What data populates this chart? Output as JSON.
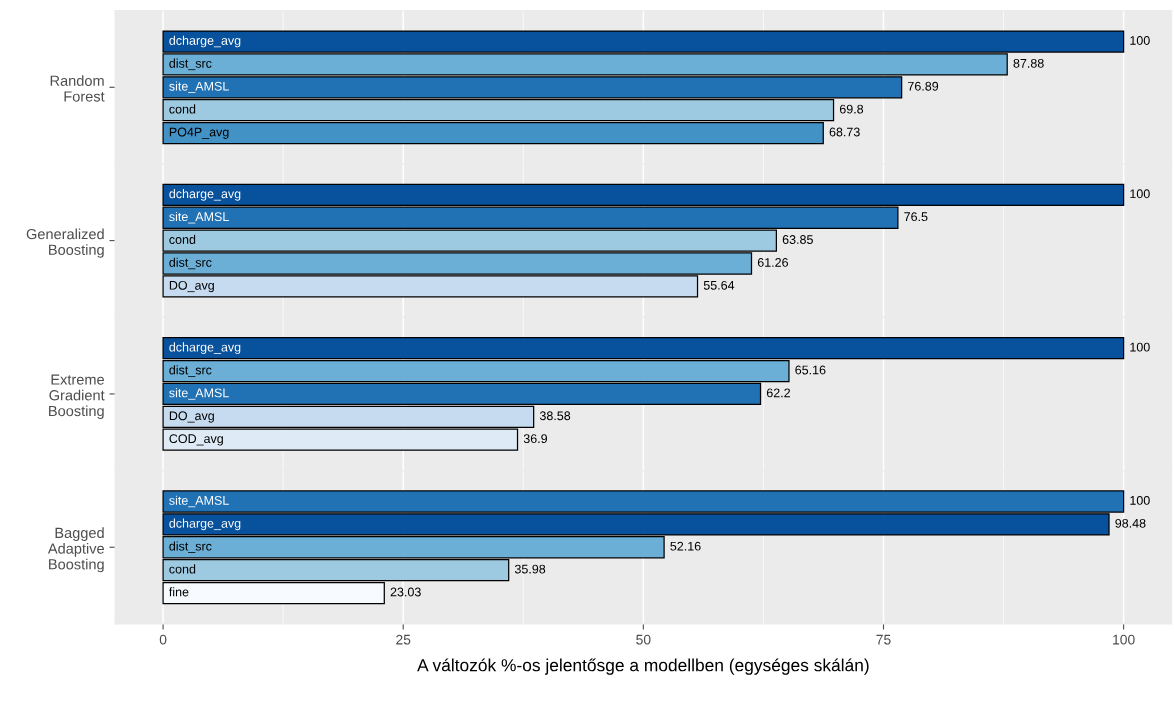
{
  "chart_data": [
    {
      "type": "bar",
      "orientation": "horizontal",
      "ylabel": "Random\nForest",
      "categories": [
        "dcharge_avg",
        "dist_src",
        "site_AMSL",
        "cond",
        "PO4P_avg"
      ],
      "values": [
        100,
        87.88,
        76.89,
        69.8,
        68.73
      ],
      "colors": [
        "#08519c",
        "#6baed6",
        "#2171b5",
        "#9ecae1",
        "#4292c6"
      ],
      "data_labels": true,
      "xlim": [
        -5,
        105
      ],
      "xticks": [
        0,
        25,
        50,
        75,
        100
      ],
      "grid": "x",
      "tick_labels": "y"
    },
    {
      "type": "bar",
      "orientation": "horizontal",
      "ylabel": "Generalized\nBoosting",
      "categories": [
        "dcharge_avg",
        "site_AMSL",
        "cond",
        "dist_src",
        "DO_avg"
      ],
      "values": [
        100,
        76.5,
        63.85,
        61.26,
        55.64
      ],
      "colors": [
        "#08519c",
        "#2171b5",
        "#9ecae1",
        "#6baed6",
        "#c6dbef"
      ],
      "data_labels": true,
      "xlim": [
        -5,
        105
      ],
      "xticks": [
        0,
        25,
        50,
        75,
        100
      ],
      "grid": "x",
      "tick_labels": "y"
    },
    {
      "type": "bar",
      "orientation": "horizontal",
      "ylabel": "Extreme\nGradient\nBoosting",
      "categories": [
        "dcharge_avg",
        "dist_src",
        "site_AMSL",
        "DO_avg",
        "COD_avg"
      ],
      "values": [
        100,
        65.16,
        62.2,
        38.58,
        36.9
      ],
      "colors": [
        "#08519c",
        "#6baed6",
        "#2171b5",
        "#c6dbef",
        "#deebf7"
      ],
      "data_labels": true,
      "xlim": [
        -5,
        105
      ],
      "xticks": [
        0,
        25,
        50,
        75,
        100
      ],
      "grid": "x",
      "tick_labels": "y"
    },
    {
      "type": "bar",
      "orientation": "horizontal",
      "ylabel": "Bagged\nAdaptive\nBoosting",
      "xlabel": "A változók %-os jelentősge a modellben (egységes skálán)",
      "categories": [
        "site_AMSL",
        "dcharge_avg",
        "dist_src",
        "cond",
        "fine"
      ],
      "values": [
        100,
        98.48,
        52.16,
        35.98,
        23.03
      ],
      "colors": [
        "#2171b5",
        "#08519c",
        "#6baed6",
        "#9ecae1",
        "#f7fbff"
      ],
      "data_labels": true,
      "xlim": [
        -5,
        105
      ],
      "xticks": [
        0,
        25,
        50,
        75,
        100
      ],
      "grid": "x"
    }
  ]
}
